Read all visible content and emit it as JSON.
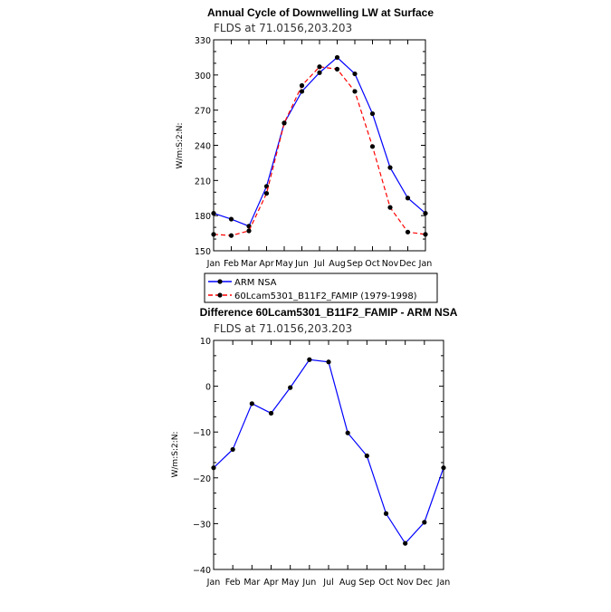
{
  "chart_data": [
    {
      "type": "line",
      "title": "Annual Cycle of Downwelling LW at Surface",
      "subtitle": "FLDS at 71.0156,203.203",
      "ylabel": "W/m:S:2:N:",
      "xlabel": "",
      "categories": [
        "Jan",
        "Feb",
        "Mar",
        "Apr",
        "May",
        "Jun",
        "Jul",
        "Aug",
        "Sep",
        "Oct",
        "Nov",
        "Dec",
        "Jan"
      ],
      "ylim": [
        150,
        330
      ],
      "yticks": [
        150,
        180,
        210,
        240,
        270,
        300,
        330
      ],
      "grid": false,
      "legend_position": "bottom",
      "series": [
        {
          "name": "ARM NSA",
          "color": "#0000ff",
          "dash": "solid",
          "values": [
            182,
            177,
            171,
            205,
            259,
            286,
            302,
            315,
            301,
            267,
            221,
            195,
            182
          ]
        },
        {
          "name": "60Lcam5301_B11F2_FAMIP (1979-1998)",
          "color": "#ff0000",
          "dash": "dashed",
          "values": [
            164,
            163,
            167,
            199,
            259,
            291,
            307,
            305,
            286,
            239,
            187,
            166,
            164
          ]
        }
      ]
    },
    {
      "type": "line",
      "title": "Difference 60Lcam5301_B11F2_FAMIP - ARM NSA",
      "subtitle": "FLDS at 71.0156,203.203",
      "ylabel": "W/m:S:2:N:",
      "xlabel": "",
      "categories": [
        "Jan",
        "Feb",
        "Mar",
        "Apr",
        "May",
        "Jun",
        "Jul",
        "Aug",
        "Sep",
        "Oct",
        "Nov",
        "Dec",
        "Jan"
      ],
      "ylim": [
        -40,
        10
      ],
      "yticks": [
        -40,
        -30,
        -20,
        -10,
        0,
        10
      ],
      "grid": false,
      "series": [
        {
          "name": "",
          "color": "#0000ff",
          "dash": "solid",
          "values": [
            -17.8,
            -13.8,
            -3.8,
            -5.9,
            -0.3,
            5.8,
            5.3,
            -10.2,
            -15.2,
            -27.8,
            -34.3,
            -29.7,
            -17.8
          ]
        }
      ]
    }
  ]
}
